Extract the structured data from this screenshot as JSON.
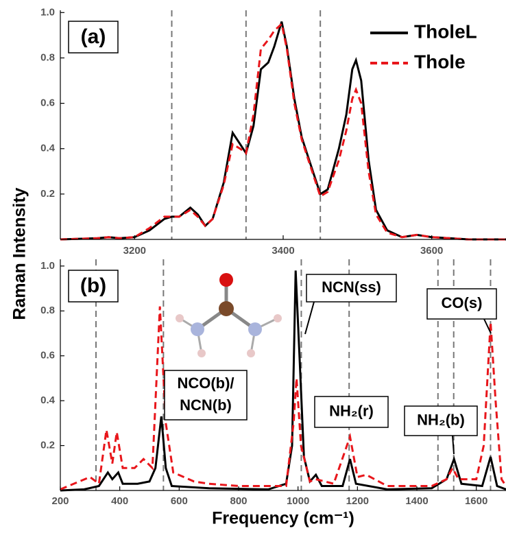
{
  "chart_data": [
    {
      "type": "line",
      "panel_label": "(a)",
      "ylabel": "Raman Intensity",
      "xlim": [
        3100,
        3700
      ],
      "xticks": [
        3200,
        3400,
        3600
      ],
      "ylim": [
        0,
        1.01
      ],
      "yticks": [
        0.2,
        0.4,
        0.6,
        0.8,
        {
          "value": 1,
          "label": "1.0"
        }
      ],
      "vlines": [
        3250,
        3350,
        3450
      ],
      "legend": "upper right",
      "series": [
        {
          "name": "TholeL",
          "color": "#000000",
          "dash": false,
          "x": [
            3100,
            3150,
            3165,
            3180,
            3200,
            3220,
            3240,
            3250,
            3260,
            3275,
            3285,
            3295,
            3305,
            3320,
            3332,
            3342,
            3350,
            3360,
            3370,
            3380,
            3388,
            3398,
            3405,
            3415,
            3425,
            3435,
            3450,
            3460,
            3475,
            3485,
            3493,
            3498,
            3505,
            3515,
            3525,
            3540,
            3560,
            3580,
            3600,
            3650,
            3700
          ],
          "values": [
            0,
            0.005,
            0.01,
            0.005,
            0.01,
            0.04,
            0.09,
            0.1,
            0.1,
            0.14,
            0.11,
            0.06,
            0.09,
            0.25,
            0.47,
            0.42,
            0.38,
            0.5,
            0.75,
            0.78,
            0.85,
            0.96,
            0.85,
            0.62,
            0.45,
            0.35,
            0.2,
            0.22,
            0.4,
            0.55,
            0.75,
            0.79,
            0.7,
            0.35,
            0.13,
            0.04,
            0.01,
            0.02,
            0.01,
            0,
            0
          ]
        },
        {
          "name": "Thole",
          "color": "#e8161b",
          "dash": true,
          "x": [
            3100,
            3150,
            3165,
            3180,
            3200,
            3220,
            3240,
            3250,
            3260,
            3275,
            3285,
            3295,
            3305,
            3320,
            3332,
            3342,
            3350,
            3360,
            3370,
            3380,
            3388,
            3398,
            3405,
            3415,
            3425,
            3435,
            3450,
            3460,
            3475,
            3485,
            3493,
            3498,
            3505,
            3515,
            3525,
            3540,
            3560,
            3580,
            3600,
            3650,
            3700
          ],
          "values": [
            0,
            0.005,
            0.01,
            0.005,
            0.01,
            0.05,
            0.1,
            0.1,
            0.1,
            0.13,
            0.1,
            0.06,
            0.09,
            0.24,
            0.42,
            0.4,
            0.38,
            0.55,
            0.84,
            0.88,
            0.92,
            0.95,
            0.84,
            0.6,
            0.44,
            0.34,
            0.19,
            0.21,
            0.35,
            0.48,
            0.62,
            0.66,
            0.6,
            0.3,
            0.11,
            0.03,
            0.01,
            0.02,
            0.01,
            0,
            0
          ]
        }
      ]
    },
    {
      "type": "line",
      "panel_label": "(b)",
      "xlabel": "Frequency (cm⁻¹)",
      "xlim": [
        200,
        1700
      ],
      "xticks": [
        200,
        400,
        600,
        800,
        1000,
        1200,
        1400,
        1600
      ],
      "ylim": [
        0,
        1.03
      ],
      "yticks": [
        0.2,
        0.4,
        0.6,
        0.8,
        {
          "value": 1,
          "label": "1.0"
        }
      ],
      "vlines": [
        320,
        547,
        1011,
        1172,
        1471,
        1524,
        1648
      ],
      "annotations": [
        [
          "NCN(ss)"
        ],
        [
          "NCO(b)/",
          "NCN(b)"
        ],
        [
          "NH₂(r)"
        ],
        [
          "NH₂(b)"
        ],
        [
          "CO(s)"
        ]
      ],
      "series": [
        {
          "color": "#000000",
          "dash": false,
          "x": [
            200,
            280,
            330,
            360,
            375,
            395,
            410,
            460,
            500,
            520,
            540,
            555,
            575,
            700,
            900,
            960,
            980,
            992,
            1005,
            1020,
            1040,
            1060,
            1080,
            1150,
            1175,
            1195,
            1300,
            1450,
            1500,
            1525,
            1550,
            1620,
            1648,
            1670,
            1700
          ],
          "values": [
            0,
            0.005,
            0.02,
            0.08,
            0.05,
            0.08,
            0.03,
            0.03,
            0.04,
            0.1,
            0.33,
            0.1,
            0.02,
            0.01,
            0.005,
            0.03,
            0.2,
            0.98,
            0.6,
            0.15,
            0.04,
            0.07,
            0.02,
            0.02,
            0.14,
            0.03,
            0.005,
            0.01,
            0.05,
            0.14,
            0.03,
            0.02,
            0.15,
            0.02,
            0.005
          ]
        },
        {
          "color": "#e8161b",
          "dash": true,
          "x": [
            200,
            300,
            330,
            355,
            375,
            390,
            410,
            450,
            480,
            510,
            535,
            555,
            580,
            650,
            700,
            800,
            900,
            960,
            985,
            995,
            1010,
            1040,
            1060,
            1120,
            1175,
            1200,
            1230,
            1300,
            1450,
            1500,
            1520,
            1540,
            1600,
            1625,
            1648,
            1665,
            1685,
            1700
          ],
          "values": [
            0.005,
            0.06,
            0.03,
            0.27,
            0.12,
            0.26,
            0.1,
            0.1,
            0.14,
            0.1,
            0.82,
            0.3,
            0.08,
            0.04,
            0.03,
            0.02,
            0.02,
            0.02,
            0.3,
            0.5,
            0.2,
            0.04,
            0.05,
            0.03,
            0.24,
            0.06,
            0.07,
            0.02,
            0.02,
            0.05,
            0.1,
            0.05,
            0.05,
            0.2,
            0.75,
            0.4,
            0.05,
            0.02
          ]
        }
      ]
    }
  ]
}
